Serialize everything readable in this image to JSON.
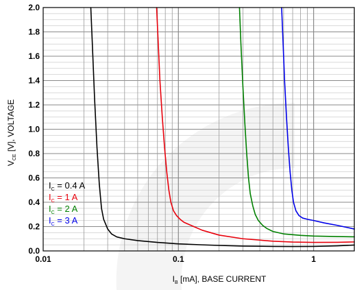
{
  "chart_data": {
    "type": "line",
    "title": "",
    "x_scale": "log",
    "y_scale": "linear",
    "xlim": [
      0.01,
      2
    ],
    "ylim": [
      0,
      2
    ],
    "grid": true,
    "x_ticks": [
      {
        "value": 0.01,
        "label": "0.01"
      },
      {
        "value": 0.1,
        "label": "0.1"
      },
      {
        "value": 1,
        "label": "1"
      }
    ],
    "y_ticks": [
      {
        "value": 0.0,
        "label": "0.0"
      },
      {
        "value": 0.2,
        "label": "0.2"
      },
      {
        "value": 0.4,
        "label": "0.4"
      },
      {
        "value": 0.6,
        "label": "0.6"
      },
      {
        "value": 0.8,
        "label": "0.8"
      },
      {
        "value": 1.0,
        "label": "1.0"
      },
      {
        "value": 1.2,
        "label": "1.2"
      },
      {
        "value": 1.4,
        "label": "1.4"
      },
      {
        "value": 1.6,
        "label": "1.6"
      },
      {
        "value": 1.8,
        "label": "1.8"
      },
      {
        "value": 2.0,
        "label": "2.0"
      }
    ],
    "xlabel": {
      "sym": "I",
      "sub": "B",
      "rest": " [mA], BASE CURRENT"
    },
    "ylabel": {
      "sym": "V",
      "sub": "CE",
      "rest": " [V], VOLTAGE"
    },
    "legend_placement": "bottom-left",
    "series": [
      {
        "sym": "I",
        "sub": "C",
        "rest": " = 0.4 A",
        "color": "#000000",
        "x": [
          0.0225,
          0.023,
          0.024,
          0.025,
          0.026,
          0.027,
          0.028,
          0.03,
          0.032,
          0.035,
          0.04,
          0.05,
          0.07,
          0.1,
          0.15,
          0.2,
          0.3,
          0.5,
          0.7,
          1.0,
          1.5,
          2.0
        ],
        "y": [
          2.0,
          1.75,
          1.25,
          0.85,
          0.55,
          0.35,
          0.26,
          0.18,
          0.14,
          0.115,
          0.1,
          0.085,
          0.07,
          0.058,
          0.05,
          0.045,
          0.04,
          0.037,
          0.036,
          0.037,
          0.042,
          0.048
        ]
      },
      {
        "sym": "I",
        "sub": "C",
        "rest": " = 1 A",
        "color": "#e8000b",
        "x": [
          0.069,
          0.071,
          0.073,
          0.076,
          0.079,
          0.082,
          0.085,
          0.088,
          0.092,
          0.097,
          0.103,
          0.11,
          0.13,
          0.15,
          0.2,
          0.3,
          0.5,
          0.7,
          1.0,
          1.5,
          2.0
        ],
        "y": [
          2.0,
          1.7,
          1.4,
          1.1,
          0.85,
          0.65,
          0.5,
          0.4,
          0.33,
          0.29,
          0.26,
          0.235,
          0.2,
          0.17,
          0.13,
          0.1,
          0.08,
          0.073,
          0.07,
          0.071,
          0.074
        ]
      },
      {
        "sym": "I",
        "sub": "C",
        "rest": " = 2 A",
        "color": "#008000",
        "x": [
          0.283,
          0.29,
          0.3,
          0.31,
          0.32,
          0.33,
          0.34,
          0.355,
          0.37,
          0.39,
          0.42,
          0.45,
          0.5,
          0.6,
          0.8,
          1.0,
          1.5,
          2.0
        ],
        "y": [
          2.0,
          1.7,
          1.35,
          1.05,
          0.8,
          0.6,
          0.47,
          0.37,
          0.3,
          0.25,
          0.21,
          0.185,
          0.16,
          0.14,
          0.128,
          0.122,
          0.118,
          0.116
        ]
      },
      {
        "sym": "I",
        "sub": "C",
        "rest": " = 3 A",
        "color": "#0000e8",
        "x": [
          0.58,
          0.595,
          0.61,
          0.63,
          0.65,
          0.67,
          0.69,
          0.71,
          0.74,
          0.78,
          0.83,
          0.9,
          1.0,
          1.2,
          1.5,
          2.0
        ],
        "y": [
          2.0,
          1.7,
          1.4,
          1.1,
          0.85,
          0.65,
          0.5,
          0.4,
          0.33,
          0.29,
          0.27,
          0.26,
          0.25,
          0.23,
          0.21,
          0.18
        ]
      }
    ]
  }
}
